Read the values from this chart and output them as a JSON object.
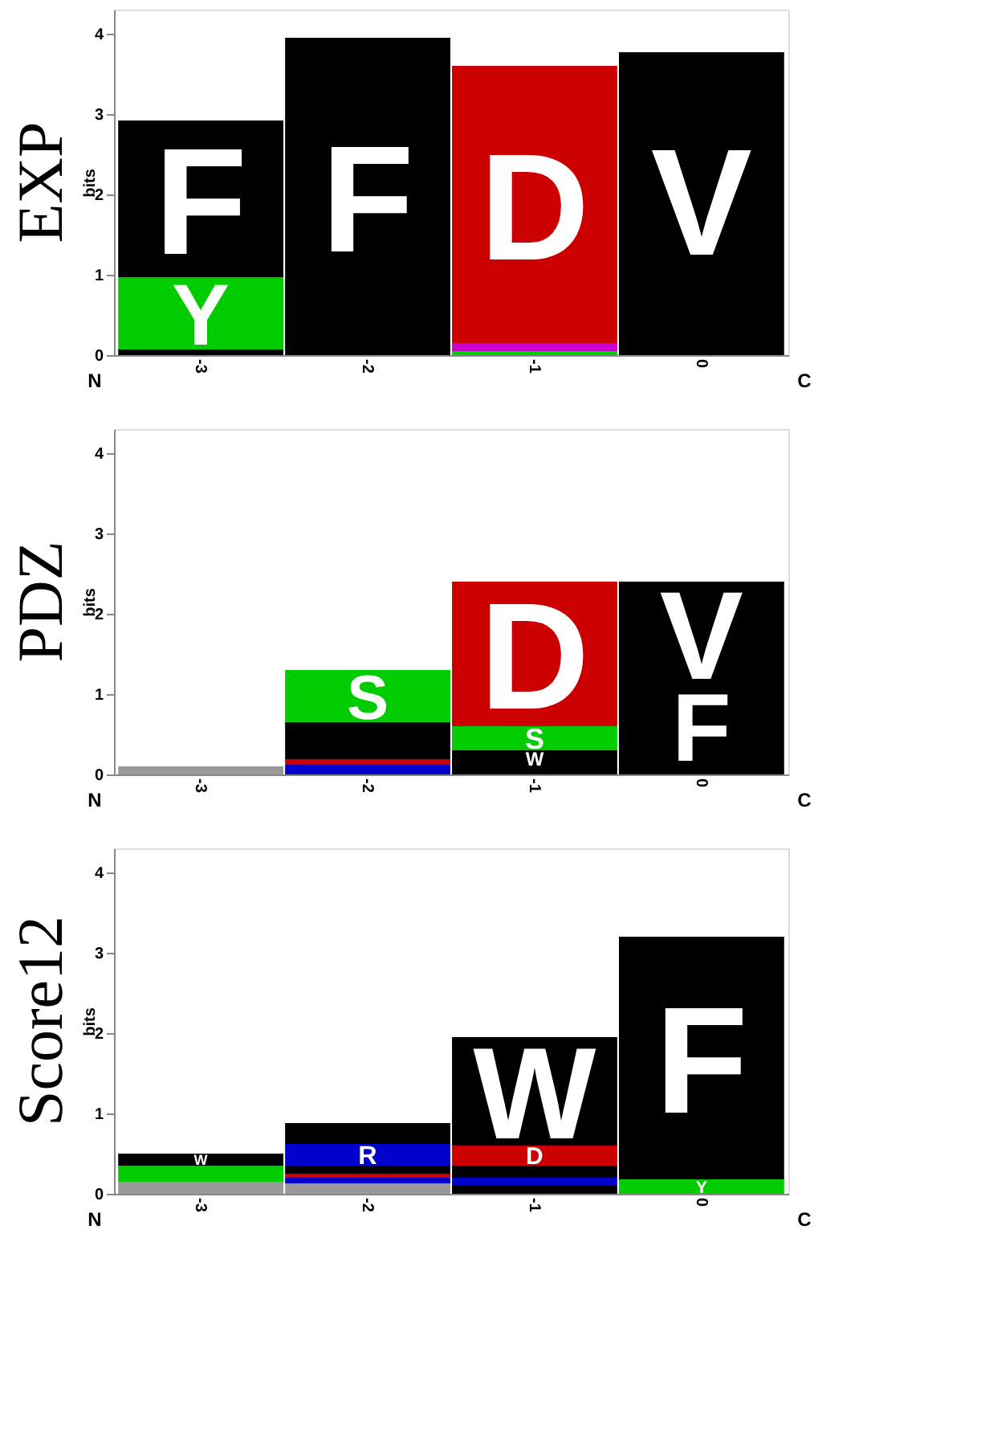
{
  "chart_data": [
    {
      "type": "bar",
      "stacked": true,
      "title": "EXP",
      "ylabel": "bits",
      "categories": [
        "-3",
        "-2",
        "-1",
        "0"
      ],
      "ylim": [
        0,
        4.3
      ],
      "yticks": [
        0,
        1,
        2,
        3,
        4
      ],
      "grid": false,
      "annotations": [
        "N",
        "C"
      ],
      "series": [
        {
          "color": "#000000",
          "values": [
            0.07,
            null,
            null,
            0.1
          ]
        },
        {
          "color": "#00cc00",
          "values": [
            null,
            null,
            0.05,
            null
          ]
        },
        {
          "color": "#cc00cc",
          "values": [
            null,
            null,
            0.1,
            null
          ]
        },
        {
          "name": "Y",
          "color": "#00cc00",
          "values": [
            0.9,
            null,
            null,
            null
          ]
        },
        {
          "name": "F",
          "color": "#000000",
          "values": [
            1.95,
            3.95,
            null,
            null
          ]
        },
        {
          "name": "D",
          "color": "#cc0000",
          "values": [
            null,
            null,
            3.45,
            null
          ]
        },
        {
          "name": "V",
          "color": "#000000",
          "values": [
            null,
            null,
            null,
            3.67
          ]
        }
      ]
    },
    {
      "type": "bar",
      "stacked": true,
      "title": "PDZ",
      "ylabel": "bits",
      "categories": [
        "-3",
        "-2",
        "-1",
        "0"
      ],
      "ylim": [
        0,
        4.3
      ],
      "yticks": [
        0,
        1,
        2,
        3,
        4
      ],
      "grid": false,
      "annotations": [
        "N",
        "C"
      ],
      "series": [
        {
          "color": "#999999",
          "values": [
            0.1,
            null,
            null,
            null
          ]
        },
        {
          "color": "#0000cc",
          "values": [
            null,
            0.12,
            null,
            null
          ]
        },
        {
          "color": "#cc0000",
          "values": [
            null,
            0.07,
            null,
            null
          ]
        },
        {
          "color": "#000000",
          "values": [
            null,
            0.46,
            0.1,
            0.1
          ]
        },
        {
          "name": "W",
          "color": "#000000",
          "values": [
            null,
            null,
            0.2,
            null
          ]
        },
        {
          "name": "S",
          "color": "#00cc00",
          "values": [
            null,
            0.65,
            0.3,
            null
          ]
        },
        {
          "name": "D",
          "color": "#cc0000",
          "values": [
            null,
            null,
            1.8,
            null
          ]
        },
        {
          "name": "F",
          "color": "#000000",
          "values": [
            null,
            null,
            null,
            1.0
          ]
        },
        {
          "name": "V",
          "color": "#000000",
          "values": [
            null,
            null,
            null,
            1.3
          ]
        }
      ]
    },
    {
      "type": "bar",
      "stacked": true,
      "title": "Score12",
      "ylabel": "bits",
      "categories": [
        "-3",
        "-2",
        "-1",
        "0"
      ],
      "ylim": [
        0,
        4.3
      ],
      "yticks": [
        0,
        1,
        2,
        3,
        4
      ],
      "grid": false,
      "annotations": [
        "N",
        "C"
      ],
      "series": [
        {
          "color": "#999999",
          "values": [
            0.15,
            0.13,
            null,
            null
          ]
        },
        {
          "color": "#000000",
          "values": [
            null,
            null,
            0.1,
            null
          ]
        },
        {
          "color": "#0000cc",
          "values": [
            null,
            0.07,
            0.1,
            null
          ]
        },
        {
          "color": "#00cc00",
          "values": [
            0.2,
            null,
            null,
            null
          ]
        },
        {
          "name": "Y",
          "color": "#00cc00",
          "values": [
            null,
            null,
            null,
            0.18
          ]
        },
        {
          "color": "#cc0000",
          "values": [
            null,
            0.05,
            null,
            null
          ]
        },
        {
          "color": "#000000",
          "values": [
            null,
            0.1,
            0.15,
            null
          ]
        },
        {
          "name": "R",
          "color": "#0000cc",
          "values": [
            null,
            0.27,
            null,
            null
          ]
        },
        {
          "name": "D",
          "color": "#cc0000",
          "values": [
            null,
            null,
            0.25,
            null
          ]
        },
        {
          "name": "W",
          "color": "#000000",
          "values": [
            0.15,
            null,
            1.35,
            null
          ]
        },
        {
          "color": "#000000",
          "values": [
            null,
            0.26,
            null,
            null
          ]
        },
        {
          "name": "F",
          "color": "#000000",
          "values": [
            null,
            null,
            null,
            3.02
          ]
        }
      ]
    }
  ]
}
